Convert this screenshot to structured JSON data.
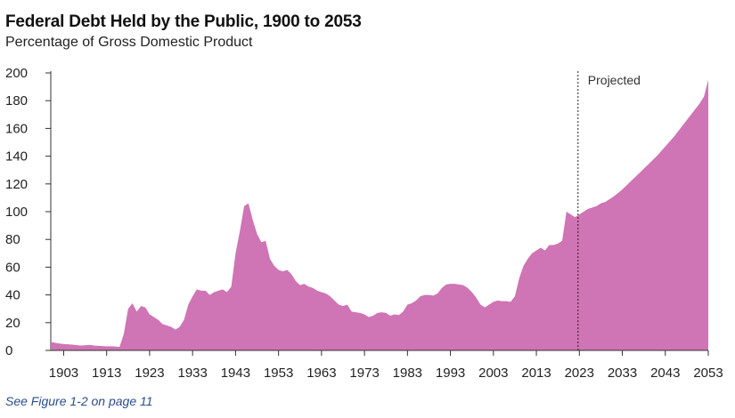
{
  "header": {
    "title": "Federal Debt Held by the Public, 1900 to 2053",
    "subtitle": "Percentage of Gross Domestic Product"
  },
  "footer": {
    "note": "See Figure 1-2 on page 11"
  },
  "chart_data": {
    "type": "area",
    "title": "Federal Debt Held by the Public, 1900 to 2053",
    "subtitle": "Percentage of Gross Domestic Product",
    "xlabel": "",
    "ylabel": "",
    "xlim": [
      1900,
      2053
    ],
    "ylim": [
      0,
      200
    ],
    "yticks": [
      0,
      20,
      40,
      60,
      80,
      100,
      120,
      140,
      160,
      180,
      200
    ],
    "xticks": [
      1903,
      1913,
      1923,
      1933,
      1943,
      1953,
      1963,
      1973,
      1983,
      1993,
      2003,
      2013,
      2023,
      2033,
      2043,
      2053
    ],
    "grid": false,
    "fill_color": "#cf74b4",
    "annotation": {
      "label": "Projected",
      "x": 2023
    },
    "series": [
      {
        "points": [
          [
            1900,
            6
          ],
          [
            1901,
            5.5
          ],
          [
            1902,
            5
          ],
          [
            1903,
            4.6
          ],
          [
            1904,
            4.4
          ],
          [
            1905,
            4.2
          ],
          [
            1906,
            3.8
          ],
          [
            1907,
            3.5
          ],
          [
            1908,
            3.7
          ],
          [
            1909,
            4.0
          ],
          [
            1910,
            3.5
          ],
          [
            1911,
            3.3
          ],
          [
            1912,
            3.1
          ],
          [
            1913,
            3.0
          ],
          [
            1914,
            3.0
          ],
          [
            1915,
            2.8
          ],
          [
            1916,
            2.5
          ],
          [
            1917,
            12
          ],
          [
            1918,
            30
          ],
          [
            1919,
            34
          ],
          [
            1920,
            28
          ],
          [
            1921,
            32
          ],
          [
            1922,
            31
          ],
          [
            1923,
            26
          ],
          [
            1924,
            24
          ],
          [
            1925,
            22
          ],
          [
            1926,
            19
          ],
          [
            1927,
            18
          ],
          [
            1928,
            17
          ],
          [
            1929,
            15
          ],
          [
            1930,
            17
          ],
          [
            1931,
            22
          ],
          [
            1932,
            33
          ],
          [
            1933,
            39
          ],
          [
            1934,
            44
          ],
          [
            1935,
            43
          ],
          [
            1936,
            43
          ],
          [
            1937,
            40
          ],
          [
            1938,
            42
          ],
          [
            1939,
            43
          ],
          [
            1940,
            44
          ],
          [
            1941,
            42
          ],
          [
            1942,
            46
          ],
          [
            1943,
            70
          ],
          [
            1944,
            86
          ],
          [
            1945,
            104
          ],
          [
            1946,
            106
          ],
          [
            1947,
            94
          ],
          [
            1948,
            84
          ],
          [
            1949,
            78
          ],
          [
            1950,
            79
          ],
          [
            1951,
            66
          ],
          [
            1952,
            61
          ],
          [
            1953,
            58
          ],
          [
            1954,
            57
          ],
          [
            1955,
            58
          ],
          [
            1956,
            55
          ],
          [
            1957,
            50
          ],
          [
            1958,
            47
          ],
          [
            1959,
            48
          ],
          [
            1960,
            46
          ],
          [
            1961,
            45
          ],
          [
            1962,
            43
          ],
          [
            1963,
            42
          ],
          [
            1964,
            41
          ],
          [
            1965,
            39
          ],
          [
            1966,
            36
          ],
          [
            1967,
            33
          ],
          [
            1968,
            32
          ],
          [
            1969,
            33
          ],
          [
            1970,
            28
          ],
          [
            1971,
            27.5
          ],
          [
            1972,
            27
          ],
          [
            1973,
            26
          ],
          [
            1974,
            24
          ],
          [
            1975,
            25
          ],
          [
            1976,
            27
          ],
          [
            1977,
            27.5
          ],
          [
            1978,
            27
          ],
          [
            1979,
            25
          ],
          [
            1980,
            26
          ],
          [
            1981,
            25.5
          ],
          [
            1982,
            28
          ],
          [
            1983,
            33
          ],
          [
            1984,
            34
          ],
          [
            1985,
            36
          ],
          [
            1986,
            39
          ],
          [
            1987,
            40
          ],
          [
            1988,
            40
          ],
          [
            1989,
            39.5
          ],
          [
            1990,
            41
          ],
          [
            1991,
            45
          ],
          [
            1992,
            47.5
          ],
          [
            1993,
            48
          ],
          [
            1994,
            48
          ],
          [
            1995,
            47.5
          ],
          [
            1996,
            47
          ],
          [
            1997,
            45
          ],
          [
            1998,
            42
          ],
          [
            1999,
            38
          ],
          [
            2000,
            33
          ],
          [
            2001,
            31
          ],
          [
            2002,
            33
          ],
          [
            2003,
            35
          ],
          [
            2004,
            36
          ],
          [
            2005,
            35.5
          ],
          [
            2006,
            35.5
          ],
          [
            2007,
            35
          ],
          [
            2008,
            39
          ],
          [
            2009,
            52
          ],
          [
            2010,
            61
          ],
          [
            2011,
            66
          ],
          [
            2012,
            70
          ],
          [
            2013,
            72
          ],
          [
            2014,
            74
          ],
          [
            2015,
            72
          ],
          [
            2016,
            76
          ],
          [
            2017,
            76
          ],
          [
            2018,
            77
          ],
          [
            2019,
            79
          ],
          [
            2020,
            100
          ],
          [
            2021,
            98
          ],
          [
            2022,
            96
          ],
          [
            2023,
            98
          ],
          [
            2024,
            100
          ],
          [
            2025,
            102
          ],
          [
            2026,
            103
          ],
          [
            2027,
            104
          ],
          [
            2028,
            106
          ],
          [
            2029,
            107
          ],
          [
            2030,
            109
          ],
          [
            2031,
            111
          ],
          [
            2032,
            113.5
          ],
          [
            2033,
            116
          ],
          [
            2034,
            119
          ],
          [
            2035,
            122
          ],
          [
            2036,
            125
          ],
          [
            2037,
            128
          ],
          [
            2038,
            131
          ],
          [
            2039,
            134
          ],
          [
            2040,
            137
          ],
          [
            2041,
            140
          ],
          [
            2042,
            143.5
          ],
          [
            2043,
            147
          ],
          [
            2044,
            150.5
          ],
          [
            2045,
            154
          ],
          [
            2046,
            158
          ],
          [
            2047,
            162
          ],
          [
            2048,
            166
          ],
          [
            2049,
            170
          ],
          [
            2050,
            174
          ],
          [
            2051,
            178
          ],
          [
            2052,
            183
          ],
          [
            2053,
            195
          ]
        ]
      }
    ]
  }
}
